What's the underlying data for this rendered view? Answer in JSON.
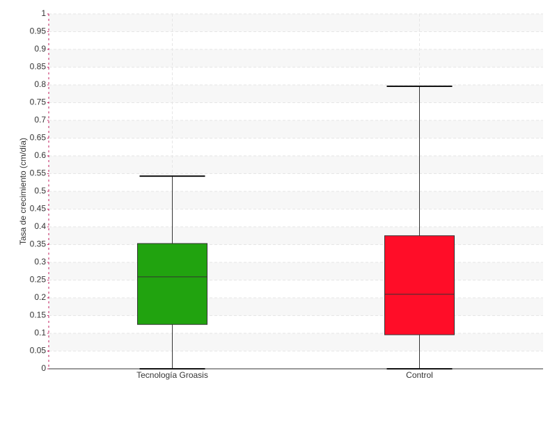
{
  "chart_data": {
    "type": "box",
    "y_label": "Tasa de crecimiento (cm/día)",
    "categories": [
      "Tecnología Groasis",
      "Control"
    ],
    "boxes": [
      {
        "min": 0,
        "q1": 0.125,
        "median": 0.259,
        "q3": 0.353,
        "max": 0.543,
        "color": "#21a30f"
      },
      {
        "min": 0,
        "q1": 0.096,
        "median": 0.21,
        "q3": 0.375,
        "max": 0.796,
        "color": "#ff0d28"
      }
    ],
    "ylim": [
      0,
      1
    ],
    "yticks": [
      0,
      0.05,
      0.1,
      0.15,
      0.2,
      0.25,
      0.3,
      0.35,
      0.4,
      0.45,
      0.5,
      0.55,
      0.6,
      0.65,
      0.7,
      0.75,
      0.8,
      0.85,
      0.9,
      0.95,
      1
    ],
    "grid": true
  }
}
